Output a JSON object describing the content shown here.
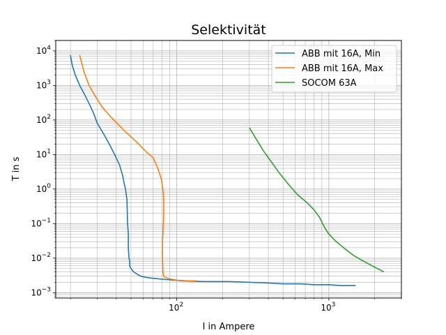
{
  "chart_data": {
    "type": "line",
    "title": "Selektivität",
    "xlabel": "I in Ampere",
    "ylabel": "T in s",
    "xscale": "log",
    "yscale": "log",
    "xlim": [
      16,
      3000
    ],
    "ylim": [
      0.0007,
      20000
    ],
    "grid": "both major and minor",
    "legend_position": "top-right",
    "x_ticks": [
      {
        "value": 100,
        "base": "10",
        "exp": "2"
      },
      {
        "value": 1000,
        "base": "10",
        "exp": "3"
      }
    ],
    "y_ticks": [
      {
        "value": 0.001,
        "base": "10",
        "exp": "−3"
      },
      {
        "value": 0.01,
        "base": "10",
        "exp": "−2"
      },
      {
        "value": 0.1,
        "base": "10",
        "exp": "−1"
      },
      {
        "value": 1,
        "base": "10",
        "exp": "0"
      },
      {
        "value": 10,
        "base": "10",
        "exp": "1"
      },
      {
        "value": 100,
        "base": "10",
        "exp": "2"
      },
      {
        "value": 1000,
        "base": "10",
        "exp": "3"
      },
      {
        "value": 10000,
        "base": "10",
        "exp": "4"
      }
    ],
    "series": [
      {
        "name": "ABB  mit 16A, Min",
        "color": "#1f77b4",
        "x": [
          20,
          20.5,
          21.5,
          23,
          25,
          26.5,
          28.5,
          30,
          33,
          36,
          39,
          42,
          44,
          45,
          46,
          47,
          47.5,
          48,
          48,
          48.5,
          49,
          49,
          50,
          52,
          55,
          58,
          62,
          70,
          85,
          110,
          150,
          220,
          300,
          400,
          500,
          650,
          800,
          1000,
          1200,
          1500
        ],
        "y": [
          7500,
          4000,
          2000,
          1000,
          500,
          300,
          150,
          80,
          40,
          20,
          10,
          5,
          2.5,
          1.5,
          1,
          0.5,
          0.1,
          0.05,
          0.02,
          0.01,
          0.008,
          0.006,
          0.005,
          0.004,
          0.0034,
          0.003,
          0.0028,
          0.0026,
          0.0024,
          0.0022,
          0.0021,
          0.0021,
          0.002,
          0.0019,
          0.0018,
          0.0018,
          0.0017,
          0.0017,
          0.0016,
          0.0016
        ]
      },
      {
        "name": "ABB  mit 16A, Max",
        "color": "#ff7f0e",
        "x": [
          23,
          24.5,
          26.5,
          29,
          32,
          37,
          45,
          55,
          63,
          70,
          75,
          79,
          81,
          82,
          82,
          81.5,
          81,
          80.5,
          80.5,
          80.5,
          81,
          81,
          82,
          85,
          90,
          100,
          120,
          135
        ],
        "y": [
          7500,
          2500,
          1000,
          500,
          250,
          120,
          50,
          22,
          12,
          8,
          4,
          2,
          1,
          0.5,
          0.2,
          0.1,
          0.05,
          0.03,
          0.02,
          0.01,
          0.006,
          0.004,
          0.003,
          0.0027,
          0.0025,
          0.0023,
          0.0022,
          0.0022
        ]
      },
      {
        "name": "SOCOM 63A",
        "color": "#2ca02c",
        "x": [
          300,
          330,
          370,
          420,
          470,
          540,
          620,
          720,
          800,
          870,
          910,
          950,
          1000,
          1100,
          1250,
          1450,
          1700,
          2000,
          2300
        ],
        "y": [
          60,
          30,
          13,
          6,
          3,
          1.4,
          0.7,
          0.4,
          0.25,
          0.15,
          0.1,
          0.07,
          0.05,
          0.032,
          0.02,
          0.012,
          0.008,
          0.0055,
          0.004
        ]
      }
    ]
  }
}
